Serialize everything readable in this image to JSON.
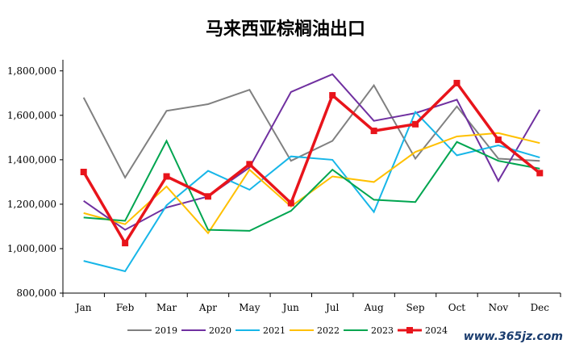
{
  "title": "马来西亚棕榈油出口",
  "watermark": "www.365jz.com",
  "chart_data": {
    "type": "line",
    "title": "马来西亚棕榈油出口",
    "categories": [
      "Jan",
      "Feb",
      "Mar",
      "Apr",
      "May",
      "Jun",
      "Jul",
      "Aug",
      "Sep",
      "Oct",
      "Nov",
      "Dec"
    ],
    "ylim": [
      800000,
      1850000
    ],
    "yticks": [
      800000,
      1000000,
      1200000,
      1400000,
      1600000,
      1800000
    ],
    "ytick_labels": [
      "800,000",
      "1,000,000",
      "1,200,000",
      "1,400,000",
      "1,600,000",
      "1,800,000"
    ],
    "grid": false,
    "legend_position": "bottom",
    "series": [
      {
        "name": "2019",
        "color": "#808080",
        "width": 2,
        "markers": false,
        "values": [
          1680000,
          1320000,
          1620000,
          1650000,
          1715000,
          1395000,
          1485000,
          1735000,
          1405000,
          1640000,
          1405000,
          1395000
        ]
      },
      {
        "name": "2020",
        "color": "#7030a0",
        "width": 2,
        "markers": false,
        "values": [
          1215000,
          1085000,
          1185000,
          1235000,
          1365000,
          1705000,
          1785000,
          1575000,
          1610000,
          1670000,
          1305000,
          1625000
        ]
      },
      {
        "name": "2021",
        "color": "#17b6e8",
        "width": 2,
        "markers": false,
        "values": [
          945000,
          898000,
          1195000,
          1350000,
          1265000,
          1415000,
          1400000,
          1165000,
          1615000,
          1420000,
          1465000,
          1410000
        ]
      },
      {
        "name": "2022",
        "color": "#ffc000",
        "width": 2,
        "markers": false,
        "values": [
          1160000,
          1110000,
          1280000,
          1070000,
          1355000,
          1190000,
          1325000,
          1300000,
          1435000,
          1505000,
          1520000,
          1475000
        ]
      },
      {
        "name": "2023",
        "color": "#00a550",
        "width": 2,
        "markers": false,
        "values": [
          1140000,
          1125000,
          1485000,
          1085000,
          1080000,
          1170000,
          1355000,
          1220000,
          1210000,
          1480000,
          1395000,
          1360000
        ]
      },
      {
        "name": "2024",
        "color": "#e8141b",
        "width": 3.5,
        "markers": true,
        "values": [
          1345000,
          1025000,
          1325000,
          1235000,
          1380000,
          1205000,
          1690000,
          1530000,
          1560000,
          1745000,
          1490000,
          1340000
        ]
      }
    ]
  }
}
